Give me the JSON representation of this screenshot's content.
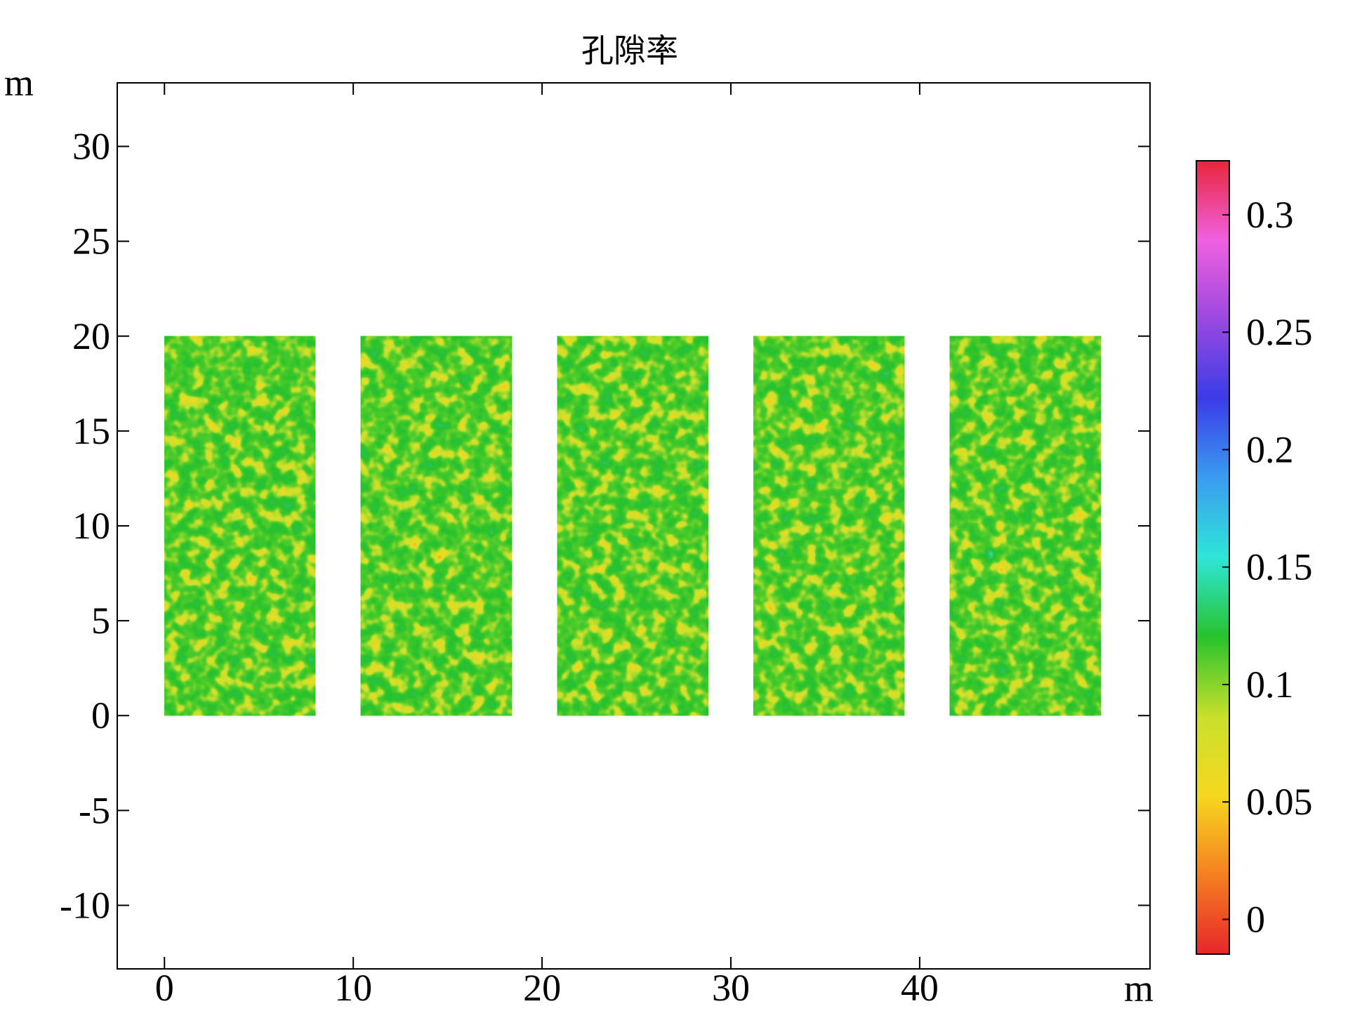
{
  "chart_data": {
    "type": "heatmap",
    "title": "孔隙率",
    "xlabel": "m",
    "ylabel": "m",
    "xlim": [
      -2.5,
      52.2
    ],
    "ylim": [
      -13.35,
      33.35
    ],
    "xticks": [
      0,
      10,
      20,
      30,
      40
    ],
    "yticks": [
      -10,
      -5,
      0,
      5,
      10,
      15,
      20,
      25,
      30
    ],
    "blocks": [
      {
        "x": [
          0,
          8
        ],
        "y": [
          0,
          20
        ]
      },
      {
        "x": [
          10.4,
          18.4
        ],
        "y": [
          0,
          20
        ]
      },
      {
        "x": [
          20.8,
          28.8
        ],
        "y": [
          0,
          20
        ]
      },
      {
        "x": [
          31.2,
          39.2
        ],
        "y": [
          0,
          20
        ]
      },
      {
        "x": [
          41.6,
          49.6
        ],
        "y": [
          0,
          20
        ]
      }
    ],
    "colorbar": {
      "clim": [
        -0.0148,
        0.323
      ],
      "ticks": [
        0,
        0.05,
        0.1,
        0.15,
        0.2,
        0.25,
        0.3
      ],
      "colormap": [
        "#e8262a",
        "#f57f20",
        "#f6d81f",
        "#c8e02c",
        "#28c22c",
        "#2ee6d8",
        "#3a9cf0",
        "#3a3ce8",
        "#9a48e0",
        "#f060e0",
        "#e8263a"
      ]
    }
  }
}
